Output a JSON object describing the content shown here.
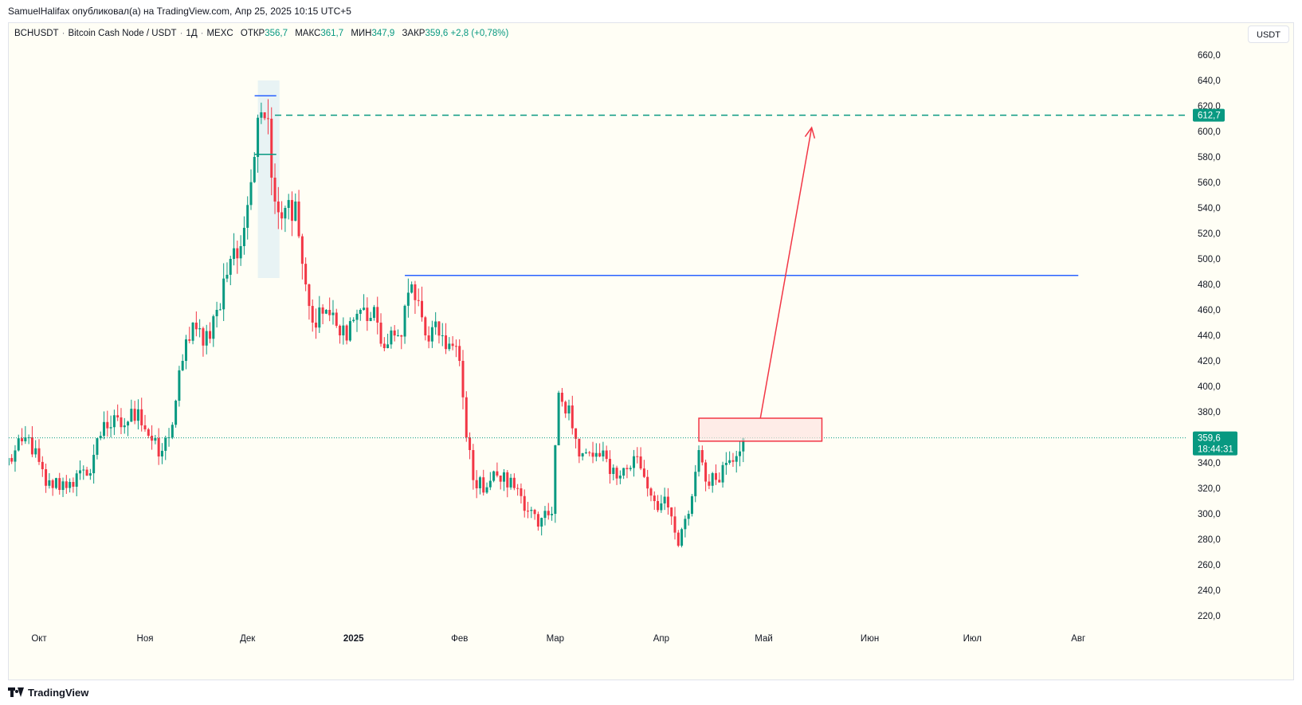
{
  "header": {
    "published_by": "SamuelHalifax опубликовал(а) на TradingView.com, Апр 25, 2025 10:15 UTC+5"
  },
  "legend": {
    "symbol": "BCHUSDT",
    "name": "Bitcoin Cash Node / USDT",
    "interval": "1Д",
    "exchange": "MEXC",
    "open_label": "ОТКР",
    "open": "356,7",
    "high_label": "МАКС",
    "high": "361,7",
    "low_label": "МИН",
    "low": "347,9",
    "close_label": "ЗАКР",
    "close": "359,6",
    "change": "+2,8 (+0,78%)"
  },
  "currency_button": "USDT",
  "footer": {
    "brand": "TradingView"
  },
  "colors": {
    "up": "#089981",
    "down": "#f23645",
    "background": "#fffef5",
    "target_line": "#089981",
    "resistance_line": "#2962ff",
    "arrow": "#f23645",
    "zone_fill": "#fde4e1"
  },
  "chart_data": {
    "type": "candlestick",
    "ylim": [
      210,
      670
    ],
    "y_ticks": [
      "220,0",
      "240,0",
      "260,0",
      "280,0",
      "300,0",
      "320,0",
      "340,0",
      "360,0",
      "380,0",
      "400,0",
      "420,0",
      "440,0",
      "460,0",
      "480,0",
      "500,0",
      "520,0",
      "540,0",
      "560,0",
      "580,0",
      "600,0",
      "620,0",
      "640,0",
      "660,0"
    ],
    "x_ticks": [
      {
        "label": "Окт",
        "date": "2024-10-01"
      },
      {
        "label": "Ноя",
        "date": "2024-11-01"
      },
      {
        "label": "Дек",
        "date": "2024-12-01"
      },
      {
        "label": "2025",
        "date": "2025-01-01"
      },
      {
        "label": "Фев",
        "date": "2025-02-01"
      },
      {
        "label": "Мар",
        "date": "2025-03-01"
      },
      {
        "label": "Апр",
        "date": "2025-04-01"
      },
      {
        "label": "Май",
        "date": "2025-05-01"
      },
      {
        "label": "Июн",
        "date": "2025-06-01"
      },
      {
        "label": "Июл",
        "date": "2025-07-01"
      },
      {
        "label": "Авг",
        "date": "2025-08-01"
      }
    ],
    "price_anchors": [
      {
        "date": "2024-09-21",
        "value": 338
      },
      {
        "date": "2024-09-28",
        "value": 360
      },
      {
        "date": "2024-10-03",
        "value": 322
      },
      {
        "date": "2024-10-10",
        "value": 325
      },
      {
        "date": "2024-10-15",
        "value": 330
      },
      {
        "date": "2024-10-20",
        "value": 372
      },
      {
        "date": "2024-10-25",
        "value": 368
      },
      {
        "date": "2024-10-30",
        "value": 382
      },
      {
        "date": "2024-11-05",
        "value": 345
      },
      {
        "date": "2024-11-08",
        "value": 360
      },
      {
        "date": "2024-11-12",
        "value": 420
      },
      {
        "date": "2024-11-15",
        "value": 450
      },
      {
        "date": "2024-11-18",
        "value": 432
      },
      {
        "date": "2024-11-22",
        "value": 460
      },
      {
        "date": "2024-11-26",
        "value": 500
      },
      {
        "date": "2024-11-29",
        "value": 510
      },
      {
        "date": "2024-12-03",
        "value": 580
      },
      {
        "date": "2024-12-05",
        "value": 615
      },
      {
        "date": "2024-12-07",
        "value": 610
      },
      {
        "date": "2024-12-09",
        "value": 545
      },
      {
        "date": "2024-12-12",
        "value": 540
      },
      {
        "date": "2024-12-15",
        "value": 545
      },
      {
        "date": "2024-12-18",
        "value": 480
      },
      {
        "date": "2024-12-20",
        "value": 450
      },
      {
        "date": "2024-12-24",
        "value": 460
      },
      {
        "date": "2024-12-28",
        "value": 440
      },
      {
        "date": "2025-01-03",
        "value": 460
      },
      {
        "date": "2025-01-08",
        "value": 450
      },
      {
        "date": "2025-01-10",
        "value": 430
      },
      {
        "date": "2025-01-14",
        "value": 440
      },
      {
        "date": "2025-01-18",
        "value": 480
      },
      {
        "date": "2025-01-22",
        "value": 440
      },
      {
        "date": "2025-01-27",
        "value": 440
      },
      {
        "date": "2025-02-01",
        "value": 420
      },
      {
        "date": "2025-02-03",
        "value": 360
      },
      {
        "date": "2025-02-06",
        "value": 320
      },
      {
        "date": "2025-02-12",
        "value": 330
      },
      {
        "date": "2025-02-18",
        "value": 320
      },
      {
        "date": "2025-02-24",
        "value": 290
      },
      {
        "date": "2025-02-28",
        "value": 300
      },
      {
        "date": "2025-03-02",
        "value": 395
      },
      {
        "date": "2025-03-05",
        "value": 385
      },
      {
        "date": "2025-03-08",
        "value": 345
      },
      {
        "date": "2025-03-14",
        "value": 345
      },
      {
        "date": "2025-03-20",
        "value": 330
      },
      {
        "date": "2025-03-25",
        "value": 345
      },
      {
        "date": "2025-03-30",
        "value": 310
      },
      {
        "date": "2025-04-03",
        "value": 305
      },
      {
        "date": "2025-04-06",
        "value": 275
      },
      {
        "date": "2025-04-09",
        "value": 300
      },
      {
        "date": "2025-04-12",
        "value": 350
      },
      {
        "date": "2025-04-15",
        "value": 322
      },
      {
        "date": "2025-04-20",
        "value": 340
      },
      {
        "date": "2025-04-25",
        "value": 359.6
      }
    ],
    "annotations": {
      "target_price": 612.7,
      "target_label": "612,7",
      "resistance_level": 487,
      "resistance_start": "2025-01-16",
      "resistance_end": "2025-08-01",
      "current_price": 359.6,
      "current_label": "359,6",
      "countdown_label": "18:44:31",
      "zone": {
        "date_start": "2025-04-12",
        "date_end": "2025-05-18",
        "y_low": 357,
        "y_high": 375
      },
      "arrow": {
        "date_start": "2025-04-30",
        "y_start": 375,
        "date_end": "2025-05-15",
        "y_end": 603
      },
      "top_range": {
        "date_start": "2024-12-04",
        "date_end": "2024-12-08",
        "y_low": 485,
        "y_high": 640
      }
    }
  }
}
